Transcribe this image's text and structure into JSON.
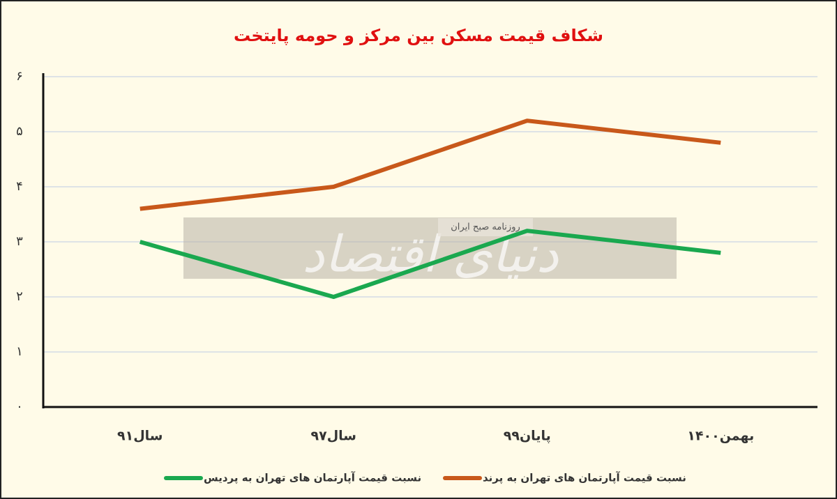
{
  "chart_data": {
    "type": "line",
    "title": "شکاف قیمت مسکن بین مرکز و حومه پایتخت",
    "categories": [
      "سال۹۱",
      "سال۹۷",
      "پایان۹۹",
      "بهمن۱۴۰۰"
    ],
    "series": [
      {
        "name": "نسبت قیمت آپارتمان های تهران به پردیس",
        "color": "#1aa84f",
        "values": [
          3.0,
          2.0,
          3.2,
          2.8
        ]
      },
      {
        "name": "نسبت قیمت آپارتمان های تهران به پرند",
        "color": "#c8581a",
        "values": [
          3.6,
          4.0,
          5.2,
          4.8
        ]
      }
    ],
    "ylim": [
      0,
      6
    ],
    "yticks": [
      {
        "value": 0,
        "label": "۰"
      },
      {
        "value": 1,
        "label": "۱"
      },
      {
        "value": 2,
        "label": "۲"
      },
      {
        "value": 3,
        "label": "۳"
      },
      {
        "value": 4,
        "label": "۴"
      },
      {
        "value": 5,
        "label": "۵"
      },
      {
        "value": 6,
        "label": "۶"
      }
    ],
    "grid": true,
    "watermark": {
      "title": "دنیای اقتصاد",
      "subtitle": "روزنامه صبح ایران"
    }
  }
}
